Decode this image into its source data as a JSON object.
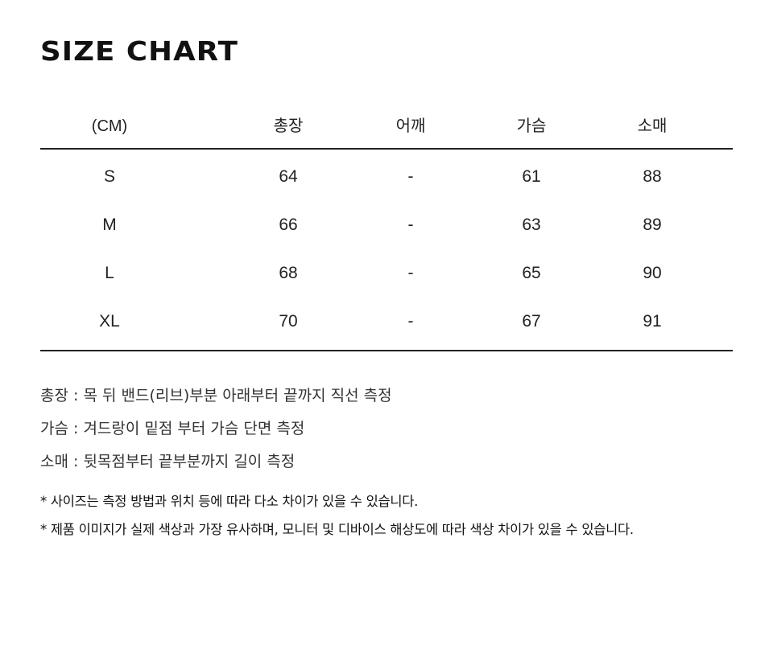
{
  "title": "SIZE CHART",
  "table": {
    "headers": [
      "(CM)",
      "총장",
      "어깨",
      "가슴",
      "소매"
    ],
    "rows": [
      [
        "S",
        "64",
        "-",
        "61",
        "88"
      ],
      [
        "M",
        "66",
        "-",
        "63",
        "89"
      ],
      [
        "L",
        "68",
        "-",
        "65",
        "90"
      ],
      [
        "XL",
        "70",
        "-",
        "67",
        "91"
      ]
    ]
  },
  "notes": [
    "총장 : 목 뒤 밴드(리브)부분 아래부터 끝까지 직선 측정",
    "가슴 : 겨드랑이 밑점 부터 가슴 단면 측정",
    "소매 : 뒷목점부터 끝부분까지 길이 측정"
  ],
  "disclaimers": [
    "* 사이즈는 측정 방법과 위치 등에 따라 다소 차이가 있을 수 있습니다.",
    "* 제품 이미지가 실제 색상과 가장 유사하며, 모니터 및 디바이스 해상도에 따라 색상 차이가 있을 수 있습니다."
  ]
}
